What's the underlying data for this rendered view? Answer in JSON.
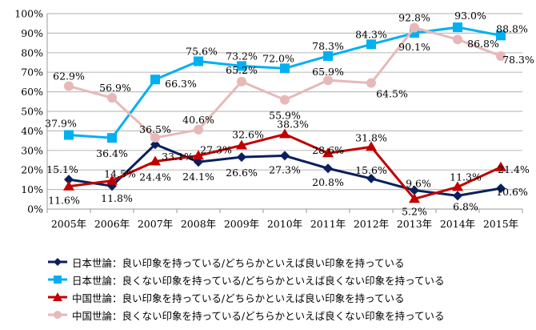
{
  "chart_data": {
    "type": "line",
    "categories": [
      "2005年",
      "2006年",
      "2007年",
      "2008年",
      "2009年",
      "2010年",
      "2011年",
      "2012年",
      "2013年",
      "2014年",
      "2015年"
    ],
    "ylim": [
      0,
      100
    ],
    "yticks": [
      "0%",
      "10%",
      "20%",
      "30%",
      "40%",
      "50%",
      "60%",
      "70%",
      "80%",
      "90%",
      "100%"
    ],
    "grid": true,
    "legend_position": "bottom",
    "series": [
      {
        "name": "日本世論：良い印象を持っている/どちらかといえば良い印象を持っている",
        "color": "#0a1f5c",
        "marker": "diamond",
        "values": [
          15.1,
          11.8,
          33.1,
          24.1,
          26.6,
          27.3,
          20.8,
          15.6,
          9.6,
          6.8,
          10.6
        ]
      },
      {
        "name": "日本世論：良くない印象を持っている/どちらかといえば良くない印象を持っている",
        "color": "#00b0f0",
        "marker": "square",
        "values": [
          37.9,
          36.4,
          66.3,
          75.6,
          73.2,
          72.0,
          78.3,
          84.3,
          90.1,
          93.0,
          88.8
        ]
      },
      {
        "name": "中国世論：良い印象を持っている/どちらかといえば良い印象を持っている",
        "color": "#c00000",
        "marker": "triangle",
        "values": [
          11.6,
          14.5,
          24.4,
          27.3,
          32.6,
          38.3,
          28.6,
          31.8,
          5.2,
          11.3,
          21.4
        ]
      },
      {
        "name": "中国世論：良くない印象を持っている/どちらかといえば良くない印象を持っている",
        "color": "#e6b9b8",
        "marker": "circle",
        "values": [
          62.9,
          56.9,
          36.5,
          40.6,
          65.2,
          55.9,
          65.9,
          64.5,
          92.8,
          86.8,
          78.3
        ]
      }
    ]
  }
}
